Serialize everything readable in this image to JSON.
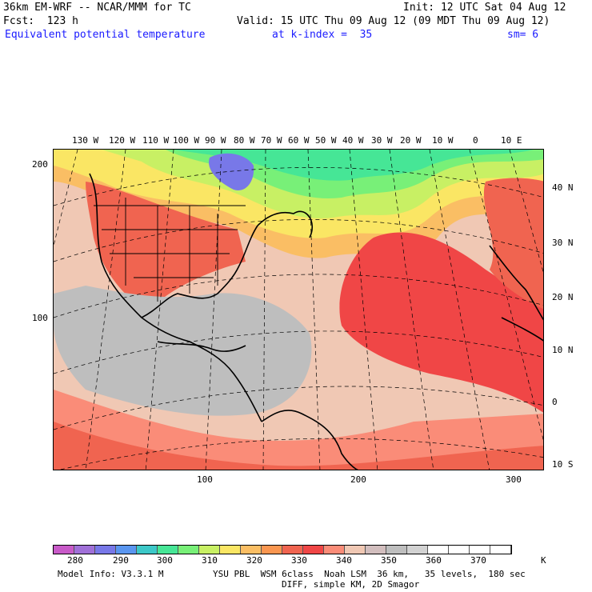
{
  "header": {
    "line1_left": "36km EM-WRF -- NCAR/MMM for TC",
    "line1_right": "Init: 12 UTC Sat 04 Aug 12",
    "line2_left": "Fcst:  123 h",
    "line2_right": "Valid: 15 UTC Thu 09 Aug 12 (09 MDT Thu 09 Aug 12)",
    "field_name": "Equivalent potential temperature",
    "level": "at k-index =  35",
    "smoothing": "sm= 6"
  },
  "map": {
    "lon_labels": [
      "130 W",
      "120 W",
      "110 W",
      "100 W",
      "90 W",
      "80 W",
      "70 W",
      "60 W",
      "50 W",
      "40 W",
      "30 W",
      "20 W",
      "10 W",
      "0",
      "10 E"
    ],
    "lat_labels": [
      "40 N",
      "30 N",
      "20 N",
      "10 N",
      "0",
      "10 S"
    ],
    "y_grid_labels": [
      "200",
      "100"
    ],
    "x_grid_labels": [
      "100",
      "200",
      "300"
    ]
  },
  "colorbar": {
    "colors": [
      "#c85ac8",
      "#a070d8",
      "#7878e8",
      "#5a96f0",
      "#3cc8c8",
      "#46e696",
      "#78f078",
      "#c8f064",
      "#fae664",
      "#fabe64",
      "#fa9650",
      "#f06450",
      "#f04646",
      "#fa8c78",
      "#f0c8b4",
      "#d2bebe",
      "#bebebe",
      "#d2d2d2",
      "#ffffff",
      "#ffffff",
      "#ffffff",
      "#ffffff"
    ],
    "labels": [
      "280",
      "290",
      "300",
      "310",
      "320",
      "330",
      "340",
      "350",
      "360",
      "370"
    ],
    "unit": "K"
  },
  "footer": {
    "line1_left": "Model Info: V3.3.1 M",
    "line1_right": "YSU PBL  WSM 6class  Noah LSM  36 km,   35 levels,  180 sec",
    "line2": "DIFF, simple KM, 2D Smagor"
  }
}
